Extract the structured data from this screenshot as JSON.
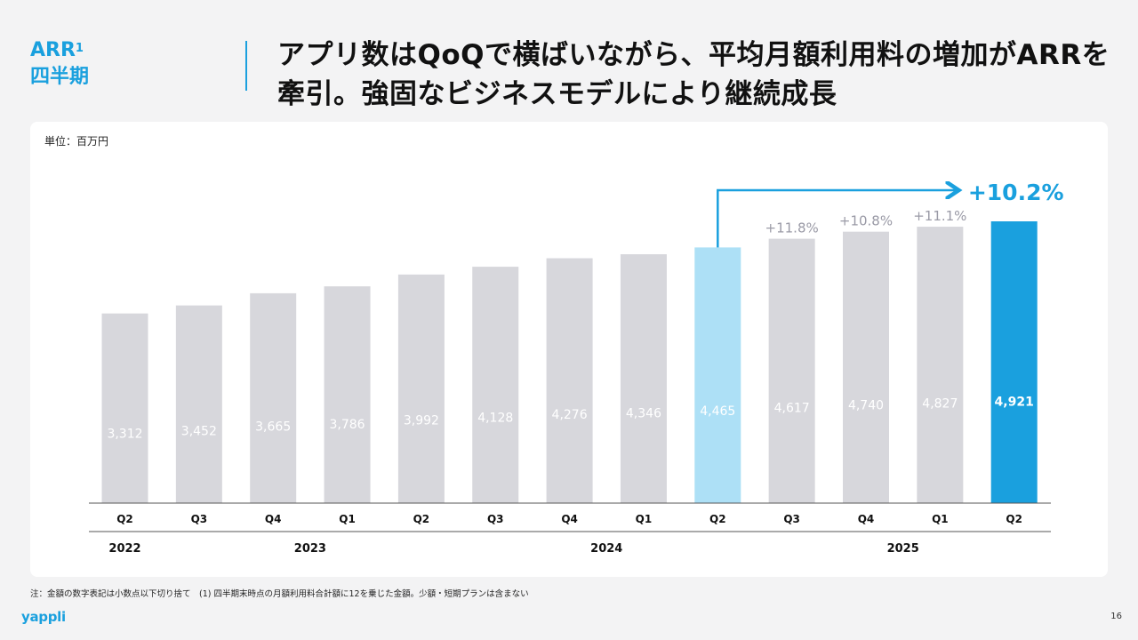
{
  "section": {
    "title": "ARR",
    "superscript": "1",
    "subtitle": "四半期"
  },
  "headline": "アプリ数はQoQで横ばいながら、平均月額利用料の増加がARRを牽引。強固なビジネスモデルにより継続成長",
  "unit_label": "単位：百万円",
  "footnote": "注：金額の数字表記は小数点以下切り捨て　(1) 四半期末時点の月額利用料合計額に12を乗じた金額。少額・短期プランは含まない",
  "logo": "yappli",
  "page_number": "16",
  "colors": {
    "accent": "#1aa0de",
    "bar_default": "#d7d7dc",
    "bar_prev_year": "#ade0f6",
    "bar_current": "#1aa0de",
    "growth_label": "#9a9aa6"
  },
  "chart_data": {
    "type": "bar",
    "title": "",
    "xlabel": "",
    "ylabel": "",
    "categories": [
      "Q2",
      "Q3",
      "Q4",
      "Q1",
      "Q2",
      "Q3",
      "Q4",
      "Q1",
      "Q2",
      "Q3",
      "Q4",
      "Q1",
      "Q2"
    ],
    "values": [
      3312,
      3452,
      3665,
      3786,
      3992,
      4128,
      4276,
      4346,
      4465,
      4617,
      4740,
      4827,
      4921
    ],
    "value_labels": [
      "3,312",
      "3,452",
      "3,665",
      "3,786",
      "3,992",
      "4,128",
      "4,276",
      "4,346",
      "4,465",
      "4,617",
      "4,740",
      "4,827",
      "4,921"
    ],
    "years": [
      {
        "label": "2022",
        "start": 0,
        "end": 0
      },
      {
        "label": "2023",
        "start": 1,
        "end": 4
      },
      {
        "label": "2024",
        "start": 5,
        "end": 8
      },
      {
        "label": "2025",
        "start": 9,
        "end": 12
      }
    ],
    "growth_labels": [
      {
        "index": 9,
        "label": "+11.8%"
      },
      {
        "index": 10,
        "label": "+10.8%"
      },
      {
        "index": 11,
        "label": "+11.1%"
      }
    ],
    "highlight": {
      "from": 8,
      "to": 12,
      "label": "+10.2%"
    },
    "ylim": [
      0,
      4921
    ],
    "grid": false
  }
}
